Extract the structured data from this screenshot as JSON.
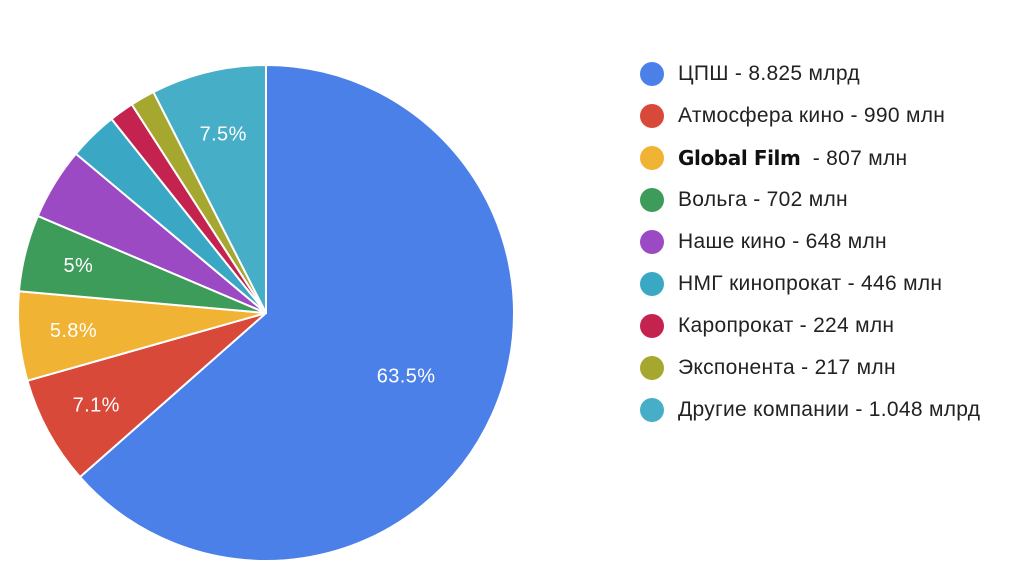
{
  "chart_data": {
    "type": "pie",
    "title": "",
    "start_angle_deg": 0,
    "direction": "clockwise",
    "slices": [
      {
        "company": "ЦПШ",
        "sep": " - ",
        "amount": "8.825 млрд",
        "percent": 63.5,
        "label": "63.5%",
        "color": "#4a80e8"
      },
      {
        "company": "Атмосфера кино",
        "sep": " - ",
        "amount": "990 млн",
        "percent": 7.1,
        "label": "7.1%",
        "color": "#d8493a"
      },
      {
        "company": "Global Film",
        "sep": "  - ",
        "amount": "807 млн",
        "percent": 5.8,
        "label": "5.8%",
        "color": "#f1b333"
      },
      {
        "company": "Вольга",
        "sep": " - ",
        "amount": "702 млн",
        "percent": 5.0,
        "label": "5%",
        "color": "#3d9c5a"
      },
      {
        "company": "Наше кино",
        "sep": " - ",
        "amount": "648 млн",
        "percent": 4.7,
        "label": "",
        "color": "#9b4ac4"
      },
      {
        "company": "НМГ кинопрокат",
        "sep": " - ",
        "amount": "446 млн",
        "percent": 3.2,
        "label": "",
        "color": "#3aa8c4"
      },
      {
        "company": "Каропрокат",
        "sep": " - ",
        "amount": "224 млн",
        "percent": 1.6,
        "label": "",
        "color": "#c4234f"
      },
      {
        "company": "Экспонента",
        "sep": " - ",
        "amount": "217 млн",
        "percent": 1.6,
        "label": "",
        "color": "#a6a72f"
      },
      {
        "company": "Другие компании",
        "sep": " - ",
        "amount": "1.048 млрд",
        "percent": 7.5,
        "label": "7.5%",
        "color": "#46aec6"
      }
    ]
  }
}
